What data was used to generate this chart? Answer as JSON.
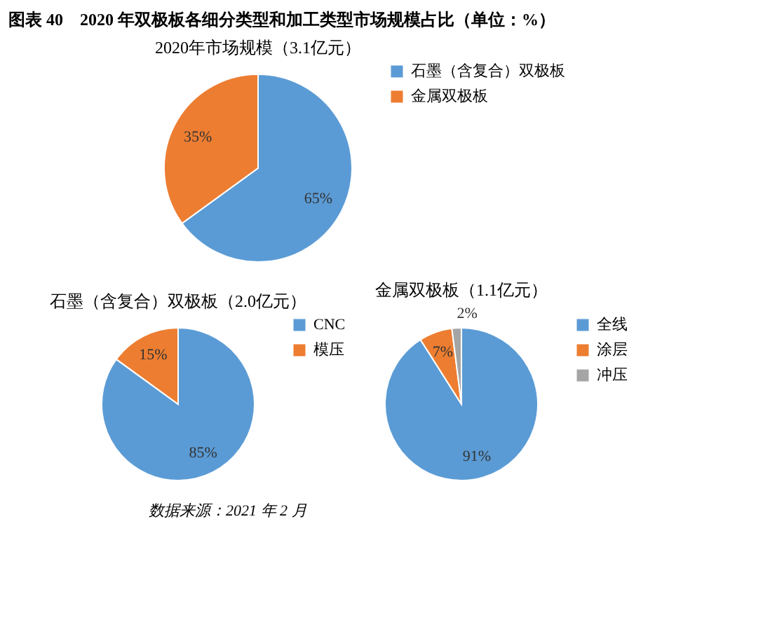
{
  "chart_data": [
    {
      "type": "pie",
      "title": "2020年市场规模（3.1亿元）",
      "categories": [
        "石墨（含复合）双极板",
        "金属双极板"
      ],
      "values": [
        65,
        35
      ],
      "colors": [
        "#5b9bd5",
        "#ed7d31"
      ],
      "value_labels": [
        "65%",
        "35%"
      ],
      "legend": "right",
      "annotations": [
        "图表 40　2020 年双极板各细分类型和加工类型市场规模占比（单位：%）"
      ]
    },
    {
      "type": "pie",
      "title": "石墨（含复合）双极板（2.0亿元）",
      "categories": [
        "CNC",
        "模压"
      ],
      "values": [
        85,
        15
      ],
      "colors": [
        "#5b9bd5",
        "#ed7d31"
      ],
      "value_labels": [
        "85%",
        "15%"
      ],
      "legend": "right"
    },
    {
      "type": "pie",
      "title": "金属双极板（1.1亿元）",
      "categories": [
        "全线",
        "涂层",
        "冲压"
      ],
      "values": [
        91,
        7,
        2
      ],
      "colors": [
        "#5b9bd5",
        "#ed7d31",
        "#a5a5a5"
      ],
      "value_labels": [
        "91%",
        "7%",
        "2%"
      ],
      "legend": "right",
      "annotations": [
        "数据来源：2021 年 2 月"
      ]
    }
  ]
}
